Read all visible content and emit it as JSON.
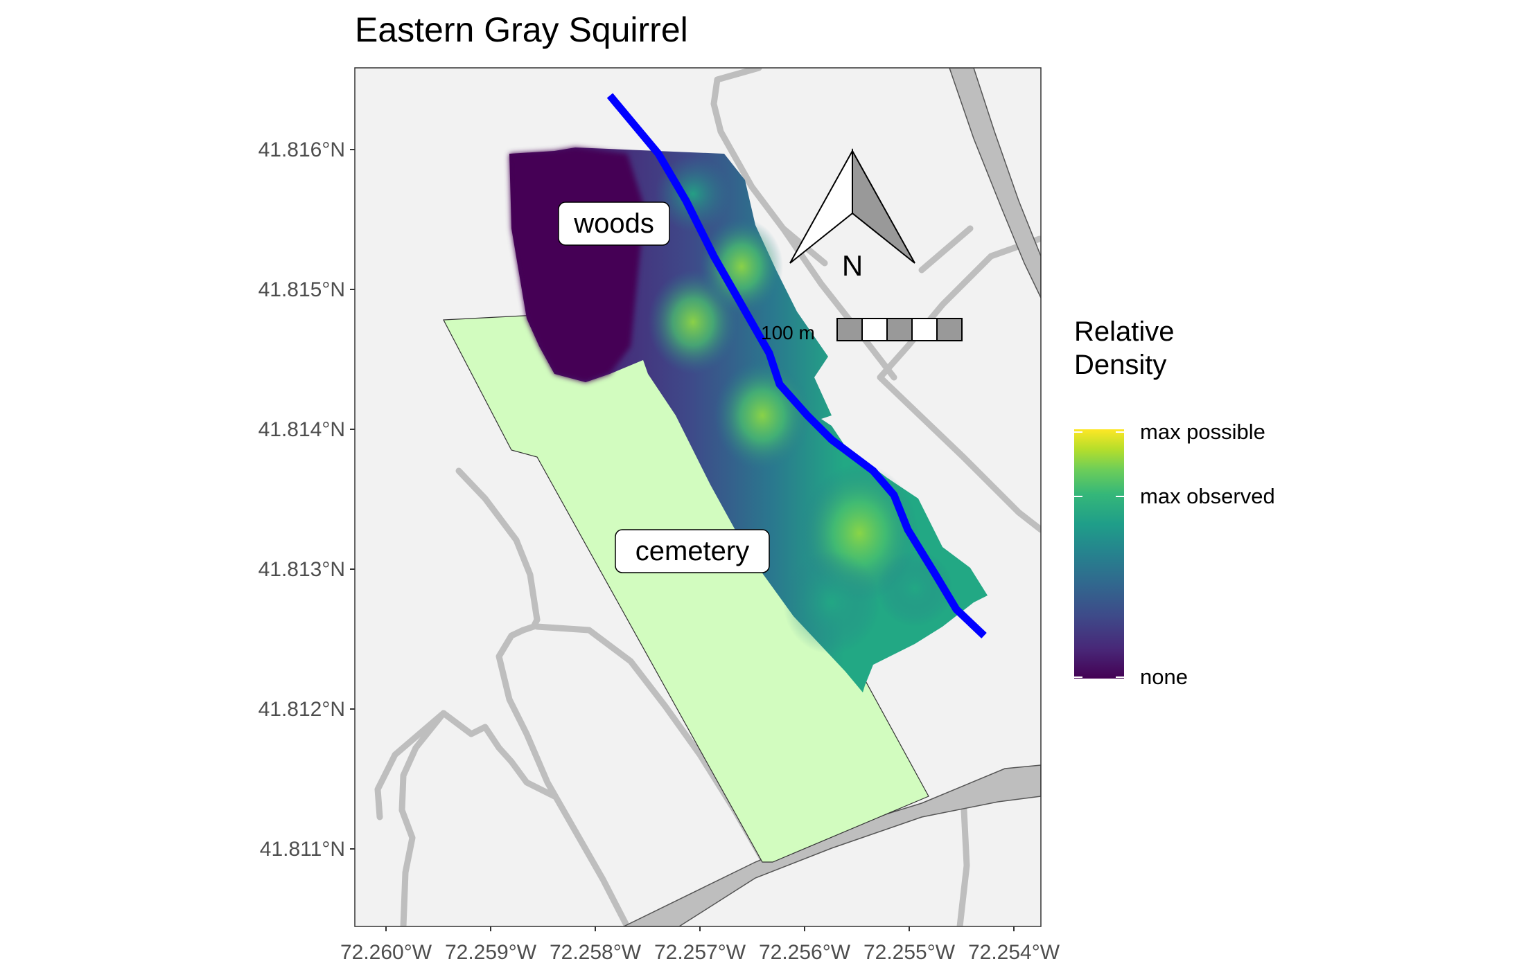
{
  "title": "Eastern Gray Squirrel",
  "labels": {
    "woods": "woods",
    "cemetery": "cemetery"
  },
  "north_arrow": {
    "letter": "N"
  },
  "scale_bar": {
    "label": "100 m"
  },
  "axes": {
    "y_ticks": [
      "41.816°N",
      "41.815°N",
      "41.814°N",
      "41.813°N",
      "41.812°N",
      "41.811°N"
    ],
    "x_ticks": [
      "72.260°W",
      "72.259°W",
      "72.258°W",
      "72.257°W",
      "72.256°W",
      "72.255°W",
      "72.254°W"
    ]
  },
  "legend": {
    "title_line1": "Relative",
    "title_line2": "Density",
    "labels": {
      "max_possible": "max possible",
      "max_observed": "max observed",
      "none": "none"
    }
  },
  "colors": {
    "panel": "#f2f2f2",
    "road": "#bebebe",
    "cemetery": "#d2fcbf",
    "transect": "#0000ff",
    "viridis": [
      "#440154",
      "#482878",
      "#3e4a89",
      "#31688e",
      "#26828e",
      "#1f9e89",
      "#35b779",
      "#6ece58",
      "#b5de2b",
      "#fde725"
    ]
  }
}
